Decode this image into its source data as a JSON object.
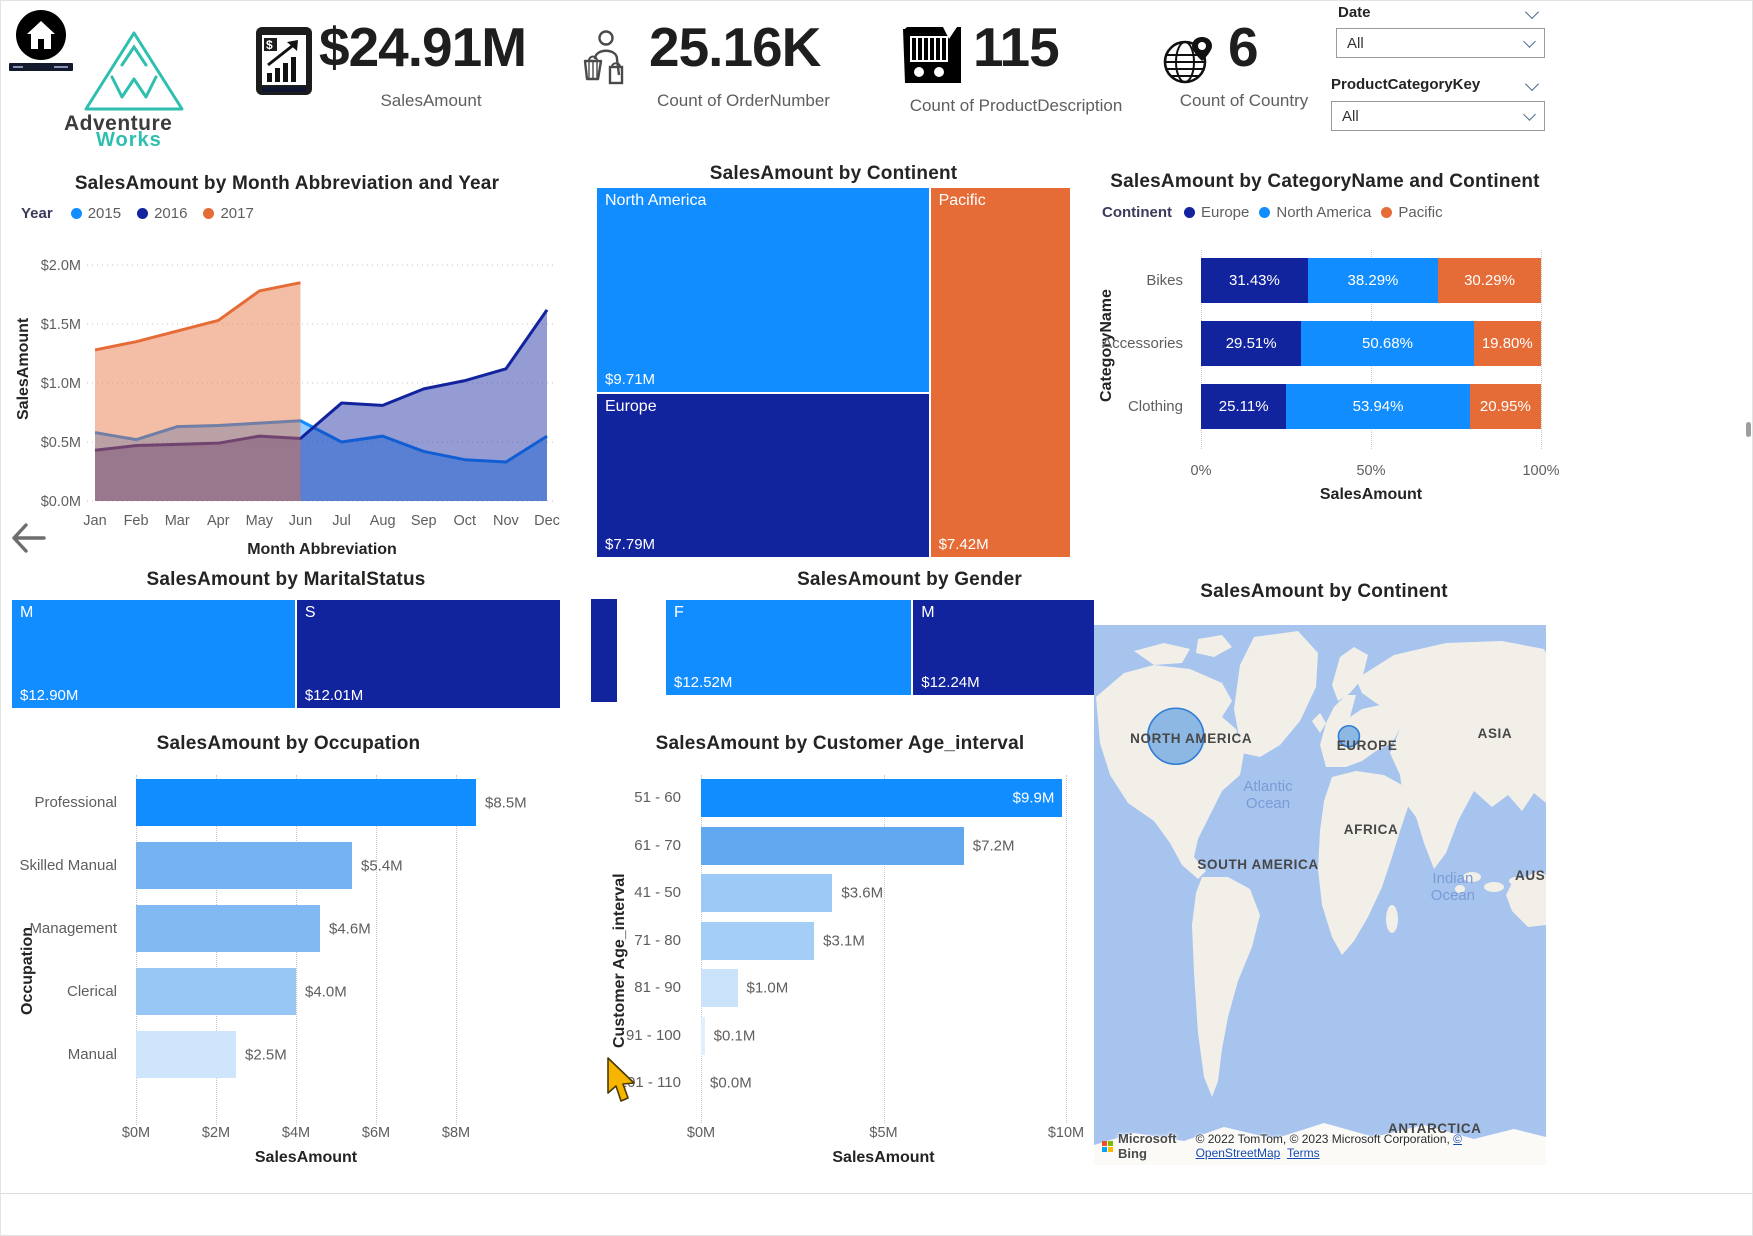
{
  "header": {
    "logo_line1": "Adventure",
    "logo_line2": "Works",
    "kpis": [
      {
        "icon": "sales-chart-icon",
        "value": "$24.91M",
        "label": "SalesAmount"
      },
      {
        "icon": "customer-basket-icon",
        "value": "25.16K",
        "label": "Count of OrderNumber"
      },
      {
        "icon": "shopping-cart-icon",
        "value": "115",
        "label": "Count of ProductDescription"
      },
      {
        "icon": "globe-pin-icon",
        "value": "6",
        "label": "Count of Country"
      }
    ],
    "filters": [
      {
        "label": "Date",
        "value": "All"
      },
      {
        "label": "ProductCategoryKey",
        "value": "All"
      }
    ]
  },
  "chart_data": {
    "monthly_sales": {
      "type": "area",
      "title": "SalesAmount by Month Abbreviation and Year",
      "legend_title": "Year",
      "xlabel": "Month Abbreviation",
      "ylabel": "SalesAmount",
      "x": [
        "Jan",
        "Feb",
        "Mar",
        "Apr",
        "May",
        "Jun",
        "Jul",
        "Aug",
        "Sep",
        "Oct",
        "Nov",
        "Dec"
      ],
      "ylim_millions": [
        0,
        2
      ],
      "yticks": [
        {
          "m": 0.0,
          "label": "$0.0M"
        },
        {
          "m": 0.5,
          "label": "$0.5M"
        },
        {
          "m": 1.0,
          "label": "$1.0M"
        },
        {
          "m": 1.5,
          "label": "$1.5M"
        },
        {
          "m": 2.0,
          "label": "$2.0M"
        }
      ],
      "series": [
        {
          "name": "2015",
          "color": "#118DFF",
          "values_millions": [
            0.58,
            0.52,
            0.63,
            0.64,
            0.66,
            0.68,
            0.5,
            0.55,
            0.42,
            0.35,
            0.33,
            0.55
          ]
        },
        {
          "name": "2016",
          "color": "#12239E",
          "values_millions": [
            0.43,
            0.47,
            0.48,
            0.49,
            0.55,
            0.53,
            0.83,
            0.81,
            0.95,
            1.02,
            1.12,
            1.62
          ]
        },
        {
          "name": "2017",
          "color": "#E66C37",
          "values_millions": [
            1.28,
            1.35,
            1.44,
            1.53,
            1.78,
            1.85,
            null,
            null,
            null,
            null,
            null,
            null
          ]
        }
      ]
    },
    "continent_treemap": {
      "type": "treemap",
      "title": "SalesAmount by Continent",
      "blocks": [
        {
          "label": "North America",
          "value_millions": 9.71,
          "display": "$9.71M",
          "color": "#118DFF"
        },
        {
          "label": "Europe",
          "value_millions": 7.79,
          "display": "$7.79M",
          "color": "#12239E"
        },
        {
          "label": "Pacific",
          "value_millions": 7.42,
          "display": "$7.42M",
          "color": "#E66C37"
        }
      ]
    },
    "category_continent": {
      "type": "stacked-bar-100",
      "title": "SalesAmount by CategoryName and Continent",
      "legend_title": "Continent",
      "legend": [
        {
          "name": "Europe",
          "color": "#12239E"
        },
        {
          "name": "North America",
          "color": "#118DFF"
        },
        {
          "name": "Pacific",
          "color": "#E66C37"
        }
      ],
      "xlabel": "SalesAmount",
      "ylabel": "CategoryName",
      "xticks": [
        "0%",
        "50%",
        "100%"
      ],
      "rows": [
        {
          "category": "Bikes",
          "segments": [
            {
              "name": "Europe",
              "pct": 31.43,
              "label": "31.43%"
            },
            {
              "name": "North America",
              "pct": 38.29,
              "label": "38.29%"
            },
            {
              "name": "Pacific",
              "pct": 30.29,
              "label": "30.29%"
            }
          ]
        },
        {
          "category": "Accessories",
          "segments": [
            {
              "name": "Europe",
              "pct": 29.51,
              "label": "29.51%"
            },
            {
              "name": "North America",
              "pct": 50.68,
              "label": "50.68%"
            },
            {
              "name": "Pacific",
              "pct": 19.8,
              "label": "19.80%"
            }
          ]
        },
        {
          "category": "Clothing",
          "segments": [
            {
              "name": "Europe",
              "pct": 25.11,
              "label": "25.11%"
            },
            {
              "name": "North America",
              "pct": 53.94,
              "label": "53.94%"
            },
            {
              "name": "Pacific",
              "pct": 20.95,
              "label": "20.95%"
            }
          ]
        }
      ]
    },
    "marital_treemap": {
      "type": "treemap",
      "title": "SalesAmount by MaritalStatus",
      "blocks": [
        {
          "label": "M",
          "value_millions": 12.9,
          "display": "$12.90M",
          "color": "#118DFF"
        },
        {
          "label": "S",
          "value_millions": 12.01,
          "display": "$12.01M",
          "color": "#12239E"
        }
      ]
    },
    "gender_treemap": {
      "type": "treemap",
      "title": "SalesAmount by Gender",
      "blocks": [
        {
          "label": "F",
          "value_millions": 12.52,
          "display": "$12.52M",
          "color": "#118DFF"
        },
        {
          "label": "M",
          "value_millions": 12.24,
          "display": "$12.24M",
          "color": "#12239E"
        }
      ]
    },
    "occupation_bar": {
      "type": "bar",
      "title": "SalesAmount by Occupation",
      "xlabel": "SalesAmount",
      "ylabel": "Occupation",
      "xmax_millions": 10.5,
      "xticks": [
        {
          "m": 0,
          "label": "$0M"
        },
        {
          "m": 2,
          "label": "$2M"
        },
        {
          "m": 4,
          "label": "$4M"
        },
        {
          "m": 6,
          "label": "$6M"
        },
        {
          "m": 8,
          "label": "$8M"
        }
      ],
      "rows": [
        {
          "label": "Professional",
          "value_millions": 8.5,
          "display": "$8.5M",
          "color": "#118DFF"
        },
        {
          "label": "Skilled Manual",
          "value_millions": 5.4,
          "display": "$5.4M",
          "color": "#74B2F1"
        },
        {
          "label": "Management",
          "value_millions": 4.6,
          "display": "$4.6M",
          "color": "#81BAF2"
        },
        {
          "label": "Clerical",
          "value_millions": 4.0,
          "display": "$4.0M",
          "color": "#98C7F5"
        },
        {
          "label": "Manual",
          "value_millions": 2.5,
          "display": "$2.5M",
          "color": "#CEE5FB"
        }
      ]
    },
    "age_bar": {
      "type": "bar",
      "title": "SalesAmount by Customer Age_interval",
      "xlabel": "SalesAmount",
      "ylabel": "Customer Age_interval",
      "xmax_millions": 10,
      "xticks": [
        {
          "m": 0,
          "label": "$0M"
        },
        {
          "m": 5,
          "label": "$5M"
        },
        {
          "m": 10,
          "label": "$10M"
        }
      ],
      "rows": [
        {
          "label": "51 - 60",
          "value_millions": 9.9,
          "display": "$9.9M",
          "inside": true,
          "color": "#118DFF"
        },
        {
          "label": "61 - 70",
          "value_millions": 7.2,
          "display": "$7.2M",
          "color": "#61A8EF"
        },
        {
          "label": "41 - 50",
          "value_millions": 3.6,
          "display": "$3.6M",
          "color": "#9CC9F6"
        },
        {
          "label": "71 - 80",
          "value_millions": 3.1,
          "display": "$3.1M",
          "color": "#A5CEF7"
        },
        {
          "label": "81 - 90",
          "value_millions": 1.0,
          "display": "$1.0M",
          "color": "#CBE3FA"
        },
        {
          "label": "91 - 100",
          "value_millions": 0.1,
          "display": "$0.1M",
          "color": "#E0EFFD"
        },
        {
          "label": "101 - 110",
          "value_millions": 0.0,
          "display": "$0.0M",
          "color": "#EAF4FE"
        }
      ]
    },
    "sales_map": {
      "type": "map",
      "title": "SalesAmount by Continent",
      "bubbles": [
        {
          "label": "North America",
          "x_pct": 18.1,
          "y_pct": 20.6,
          "r": 28
        },
        {
          "label": "Europe",
          "x_pct": 56.4,
          "y_pct": 20.6,
          "r": 10.5
        }
      ],
      "map_labels": [
        {
          "text": "NORTH AMERICA",
          "x_pct": 21.5,
          "y_pct": 21.1,
          "kind": "land"
        },
        {
          "text": "EUROPE",
          "x_pct": 60.4,
          "y_pct": 22.4,
          "kind": "land"
        },
        {
          "text": "ASIA",
          "x_pct": 88.7,
          "y_pct": 20.2,
          "kind": "land"
        },
        {
          "text": "Atlantic\nOcean",
          "x_pct": 38.5,
          "y_pct": 31.5,
          "kind": "ocean"
        },
        {
          "text": "AFRICA",
          "x_pct": 61.3,
          "y_pct": 38.0,
          "kind": "land"
        },
        {
          "text": "SOUTH AMERICA",
          "x_pct": 36.3,
          "y_pct": 44.4,
          "kind": "land"
        },
        {
          "text": "Indian\nOcean",
          "x_pct": 79.4,
          "y_pct": 48.5,
          "kind": "ocean"
        },
        {
          "text": "AUS",
          "x_pct": 96.5,
          "y_pct": 46.5,
          "kind": "land"
        },
        {
          "text": "ANTARCTICA",
          "x_pct": 75.4,
          "y_pct": 93.3,
          "kind": "land"
        }
      ],
      "attribution": {
        "provider": "Microsoft Bing",
        "copyright": "© 2022 TomTom, © 2023 Microsoft Corporation, ",
        "osm_link": "© OpenStreetMap",
        "terms_link": "Terms"
      }
    }
  }
}
